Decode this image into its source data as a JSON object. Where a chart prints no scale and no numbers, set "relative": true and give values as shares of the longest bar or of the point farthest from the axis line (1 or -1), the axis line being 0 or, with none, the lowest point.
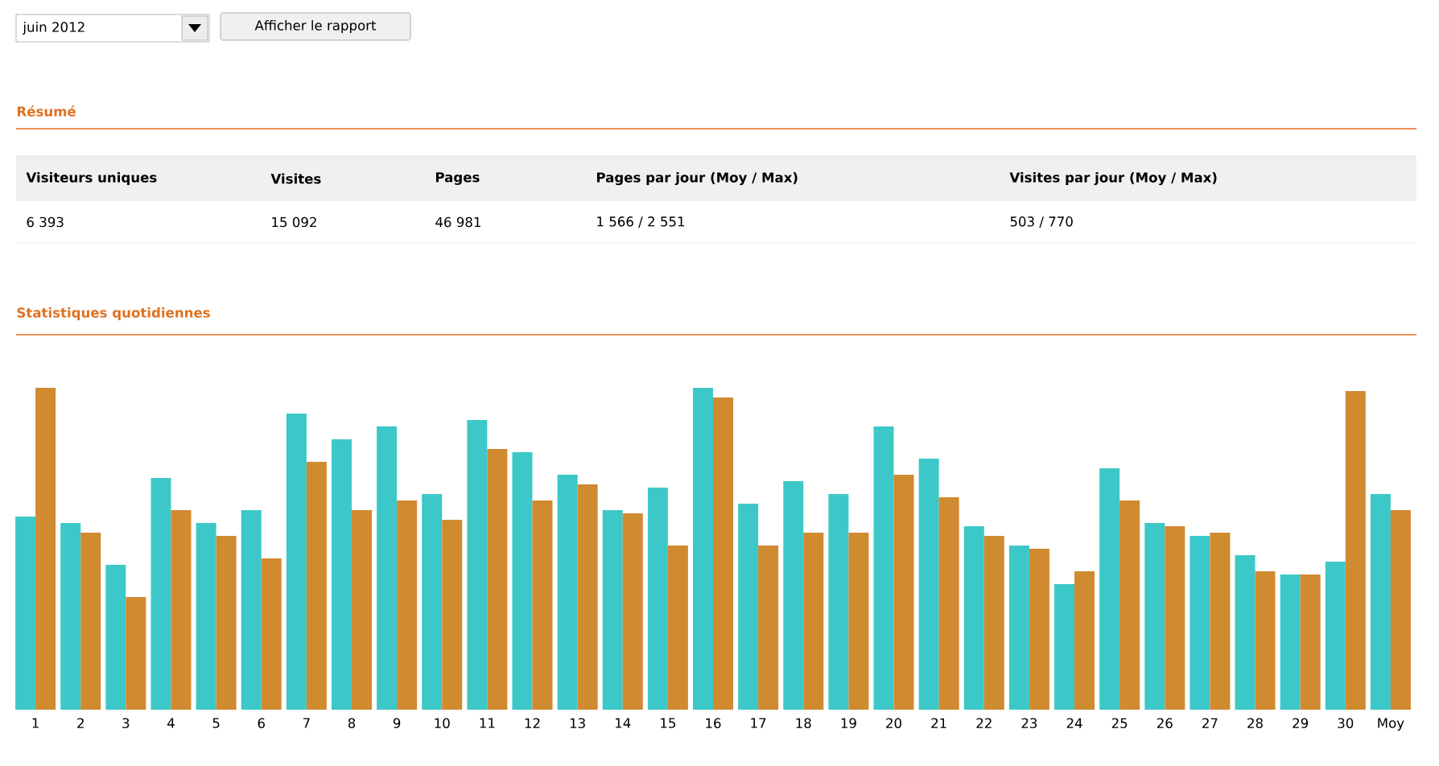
{
  "chart_data": [
    {
      "type": "other",
      "title": "Résumé",
      "annotations": [
        "juin 2012",
        "Afficher le rapport",
        "Visiteurs uniques",
        "Visites",
        "Pages",
        "Pages par jour (Moy / Max)",
        "Visites par jour (Moy / Max)",
        "6 393",
        "15 092",
        "46 981",
        "1 566 / 2 551",
        "503 / 770"
      ]
    },
    {
      "type": "bar",
      "title": "Statistiques quotidiennes",
      "relative": true,
      "categories": [
        "1",
        "2",
        "3",
        "4",
        "5",
        "6",
        "7",
        "8",
        "9",
        "10",
        "11",
        "12",
        "13",
        "14",
        "15",
        "16",
        "17",
        "18",
        "19",
        "20",
        "21",
        "22",
        "23",
        "24",
        "25",
        "26",
        "27",
        "28",
        "29",
        "30",
        "Moy"
      ],
      "series": [
        {
          "color": "#3cc8c8",
          "values": [
            0.6,
            0.58,
            0.45,
            0.72,
            0.58,
            0.62,
            0.92,
            0.84,
            0.88,
            0.67,
            0.9,
            0.8,
            0.73,
            0.62,
            0.69,
            1.0,
            0.64,
            0.71,
            0.67,
            0.88,
            0.78,
            0.57,
            0.51,
            0.39,
            0.75,
            0.58,
            0.54,
            0.48,
            0.42,
            0.46,
            0.67
          ]
        },
        {
          "color": "#d08a30",
          "values": [
            1.0,
            0.55,
            0.35,
            0.62,
            0.54,
            0.47,
            0.77,
            0.62,
            0.65,
            0.59,
            0.81,
            0.65,
            0.7,
            0.61,
            0.51,
            0.97,
            0.51,
            0.55,
            0.55,
            0.73,
            0.66,
            0.54,
            0.5,
            0.43,
            0.65,
            0.57,
            0.55,
            0.43,
            0.42,
            0.99,
            0.62
          ]
        }
      ]
    }
  ]
}
